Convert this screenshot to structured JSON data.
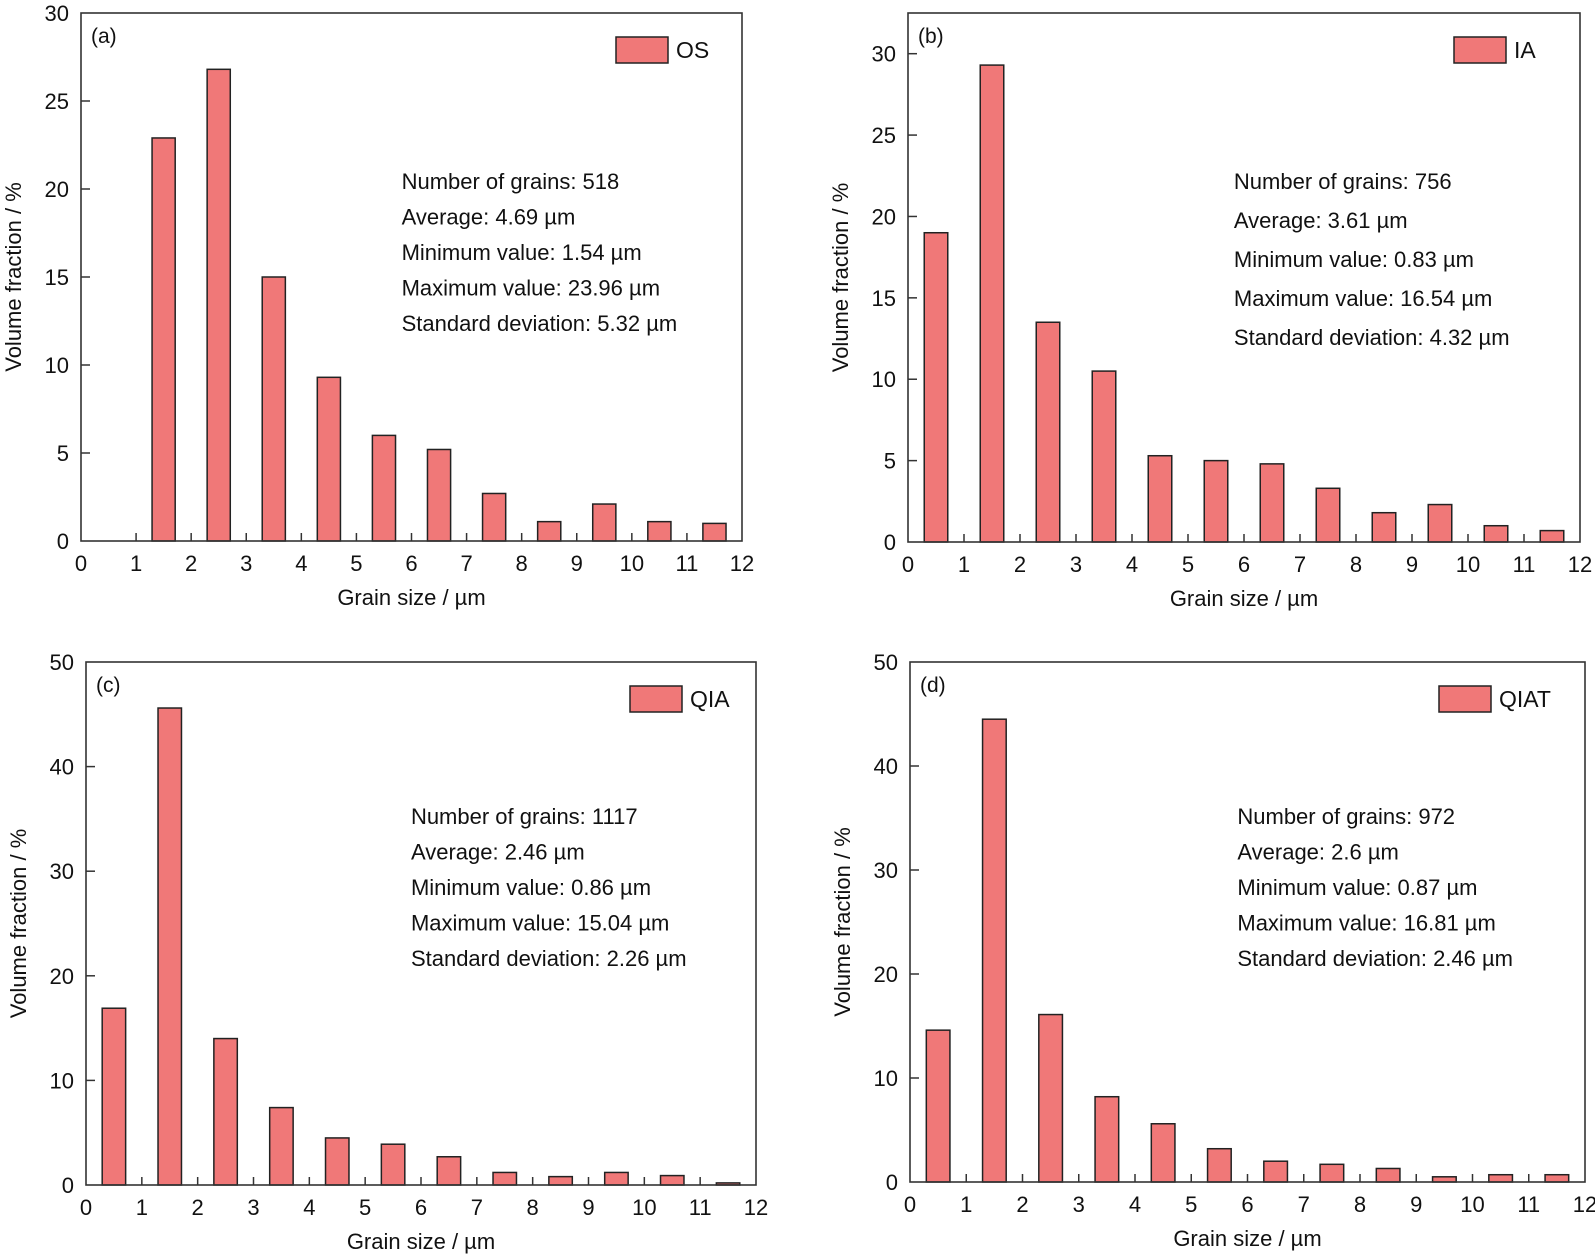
{
  "figure": {
    "bar_color": "#F07878",
    "edge_color": "#222222"
  },
  "chart_data": [
    {
      "type": "bar",
      "panel": "(a)",
      "legend": "OS",
      "legend_position": "top-right",
      "xlabel": "Grain size / µm",
      "ylabel": "Volume fraction / %",
      "xlim": [
        0,
        12
      ],
      "ylim": [
        0,
        30
      ],
      "xticks": [
        0,
        1,
        2,
        3,
        4,
        5,
        6,
        7,
        8,
        9,
        10,
        11,
        12
      ],
      "yticks": [
        0,
        5,
        10,
        15,
        20,
        25,
        30
      ],
      "bin_centers": [
        0.5,
        1.5,
        2.5,
        3.5,
        4.5,
        5.5,
        6.5,
        7.5,
        8.5,
        9.5,
        10.5,
        11.5
      ],
      "values": [
        0,
        22.9,
        26.8,
        15.0,
        9.3,
        6.0,
        5.2,
        2.7,
        1.1,
        2.1,
        1.1,
        1.0
      ],
      "stats": [
        "Number of grains: 518",
        "Average: 4.69 µm",
        "Minimum value: 1.54 µm",
        "Maximum value: 23.96 µm",
        "Standard deviation: 5.32 µm"
      ]
    },
    {
      "type": "bar",
      "panel": "(b)",
      "legend": "IA",
      "legend_position": "top-right",
      "xlabel": "Grain size / µm",
      "ylabel": "Volume fraction / %",
      "xlim": [
        0,
        12
      ],
      "ylim": [
        0,
        32.5
      ],
      "xticks": [
        0,
        1,
        2,
        3,
        4,
        5,
        6,
        7,
        8,
        9,
        10,
        11,
        12
      ],
      "yticks": [
        0,
        5,
        10,
        15,
        20,
        25,
        30
      ],
      "bin_centers": [
        0.5,
        1.5,
        2.5,
        3.5,
        4.5,
        5.5,
        6.5,
        7.5,
        8.5,
        9.5,
        10.5,
        11.5
      ],
      "values": [
        19.0,
        29.3,
        13.5,
        10.5,
        5.3,
        5.0,
        4.8,
        3.3,
        1.8,
        2.3,
        1.0,
        0.7
      ],
      "stats": [
        "Number of grains: 756",
        "Average: 3.61 µm",
        "Minimum value: 0.83 µm",
        "Maximum value: 16.54 µm",
        "Standard deviation: 4.32 µm"
      ]
    },
    {
      "type": "bar",
      "panel": "(c)",
      "legend": "QIA",
      "legend_position": "top-right",
      "xlabel": "Grain size / µm",
      "ylabel": "Volume fraction / %",
      "xlim": [
        0,
        12
      ],
      "ylim": [
        0,
        50
      ],
      "xticks": [
        0,
        1,
        2,
        3,
        4,
        5,
        6,
        7,
        8,
        9,
        10,
        11,
        12
      ],
      "yticks": [
        0,
        10,
        20,
        30,
        40,
        50
      ],
      "bin_centers": [
        0.5,
        1.5,
        2.5,
        3.5,
        4.5,
        5.5,
        6.5,
        7.5,
        8.5,
        9.5,
        10.5,
        11.5
      ],
      "values": [
        16.9,
        45.6,
        14.0,
        7.4,
        4.5,
        3.9,
        2.7,
        1.2,
        0.8,
        1.2,
        0.9,
        0.2
      ],
      "stats": [
        "Number of grains: 1117",
        "Average: 2.46 µm",
        "Minimum value: 0.86 µm",
        "Maximum value: 15.04 µm",
        "Standard deviation: 2.26 µm"
      ]
    },
    {
      "type": "bar",
      "panel": "(d)",
      "legend": "QIAT",
      "legend_position": "top-right",
      "xlabel": "Grain size / µm",
      "ylabel": "Volume fraction / %",
      "xlim": [
        0,
        12
      ],
      "ylim": [
        0,
        50
      ],
      "xticks": [
        0,
        1,
        2,
        3,
        4,
        5,
        6,
        7,
        8,
        9,
        10,
        11,
        12
      ],
      "yticks": [
        0,
        10,
        20,
        30,
        40,
        50
      ],
      "bin_centers": [
        0.5,
        1.5,
        2.5,
        3.5,
        4.5,
        5.5,
        6.5,
        7.5,
        8.5,
        9.5,
        10.5,
        11.5
      ],
      "values": [
        14.6,
        44.5,
        16.1,
        8.2,
        5.6,
        3.2,
        2.0,
        1.7,
        1.3,
        0.5,
        0.7,
        0.7
      ],
      "stats": [
        "Number of grains: 972",
        "Average: 2.6 µm",
        "Minimum value: 0.87 µm",
        "Maximum value: 16.81 µm",
        "Standard deviation: 2.46 µm"
      ]
    }
  ]
}
